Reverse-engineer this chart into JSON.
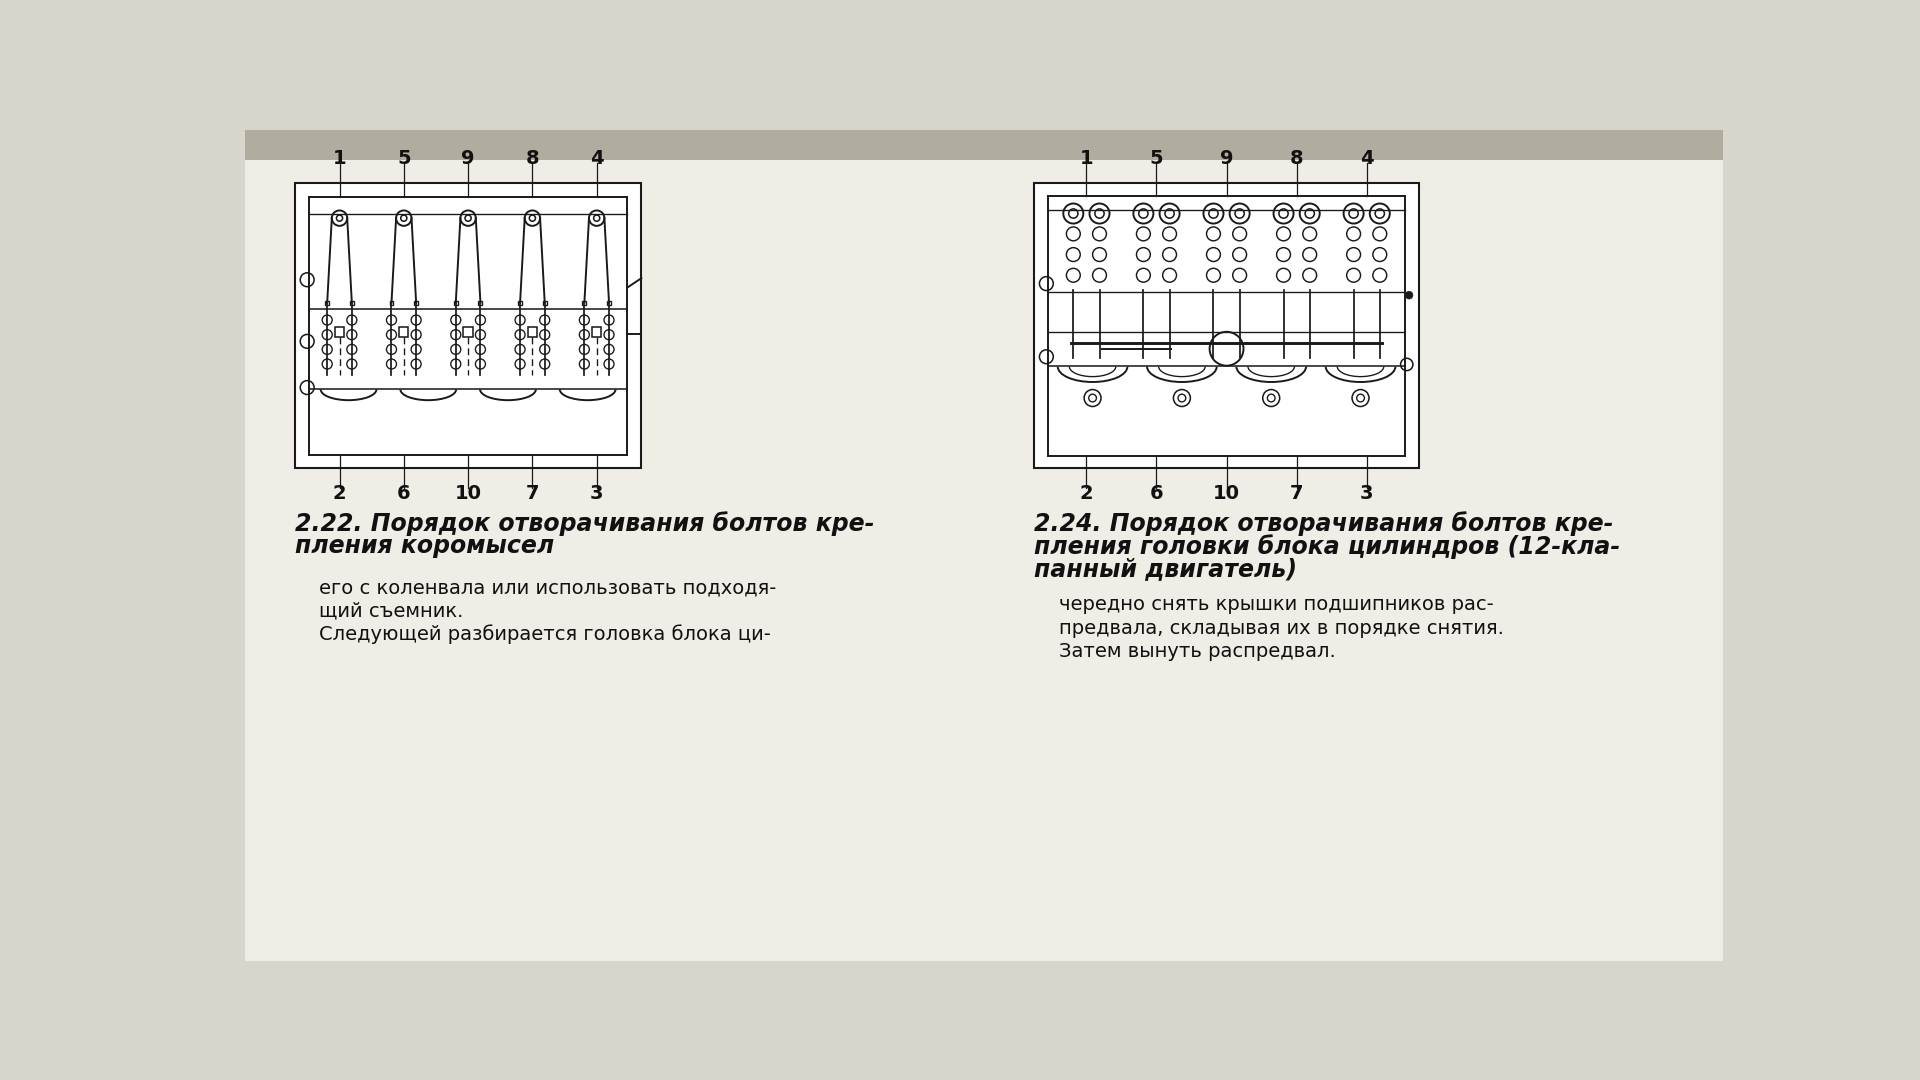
{
  "bg_color": "#d8d5cc",
  "page_bg": "#f0ede6",
  "title1_line1": "2.22. Порядок отворачивания болтов кре-",
  "title1_line2": "пления коромысел",
  "title2_line1": "2.24. Порядок отворачивания болтов кре-",
  "title2_line2": "пления головки блока цилиндров (12-кла-",
  "title2_line3": "панный двигатель)",
  "text_left_1": "его с коленвала или использовать подходя-",
  "text_left_2": "щий съемник.",
  "text_left_3": "Следующей разбирается головка блока ци-",
  "text_right_1": "чередно снять крышки подшипников рас-",
  "text_right_2": "предвала, складывая их в порядке снятия.",
  "text_right_3": "Затем вынуть распредвал.",
  "left_top_labels": [
    "1",
    "5",
    "9",
    "8",
    "4"
  ],
  "left_bottom_labels": [
    "2",
    "6",
    "10",
    "7",
    "3"
  ],
  "right_top_labels": [
    "1",
    "5",
    "9",
    "8",
    "4"
  ],
  "right_bottom_labels": [
    "2",
    "6",
    "10",
    "7",
    "3"
  ],
  "border_color": "#1a1a1a",
  "text_color": "#111111"
}
